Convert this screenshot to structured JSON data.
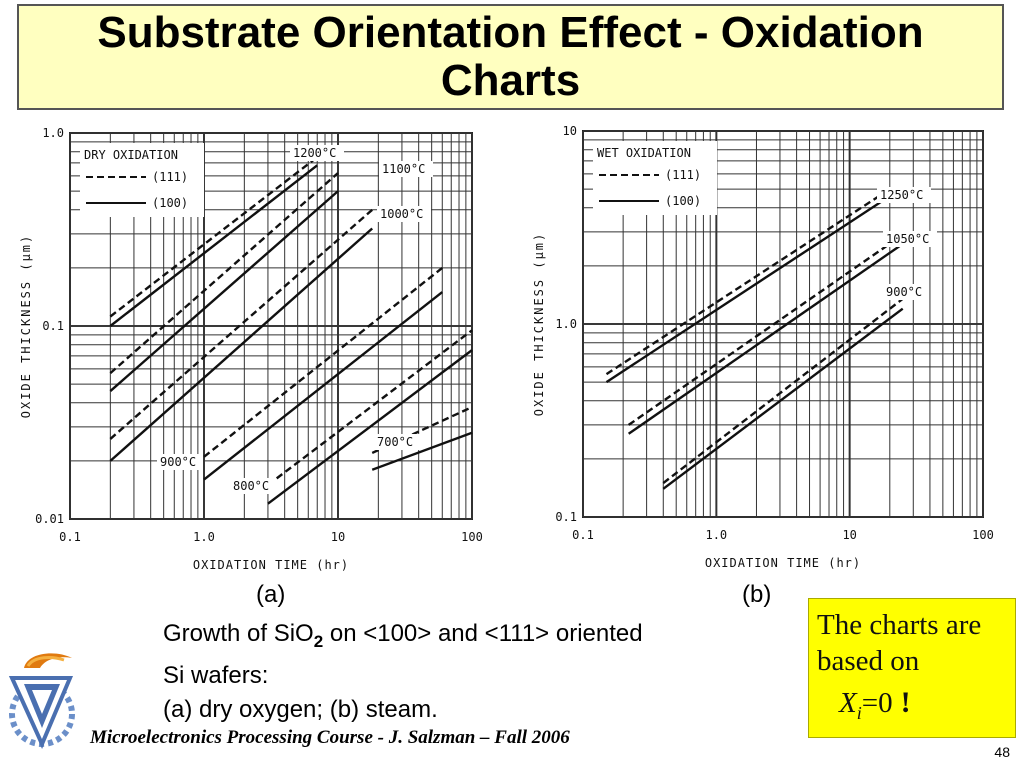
{
  "title": "Substrate Orientation Effect - Oxidation Charts",
  "caption_a": "(a)",
  "caption_b": "(b)",
  "description": {
    "line1_prefix": "Growth of SiO",
    "line1_sub": "2",
    "line1_suffix": " on <100> and <111> oriented",
    "line2": "Si wafers:",
    "line3": "(a) dry oxygen; (b) steam."
  },
  "note": {
    "line1": "The charts are",
    "line2": "based on",
    "var": "X",
    "var_sub": "i",
    "eq": "=0",
    "bang": "!"
  },
  "footer": "Microelectronics Processing Course - J. Salzman – Fall 2006",
  "page_number": "48",
  "colors": {
    "title_bg": "#ffffc0",
    "note_bg": "#ffff00",
    "ink": "#111111"
  },
  "chart_data": [
    {
      "type": "line",
      "title": "DRY OXIDATION",
      "xlabel": "OXIDATION TIME (hr)",
      "ylabel": "OXIDE THICKNESS (µm)",
      "x_scale": "log",
      "y_scale": "log",
      "xlim": [
        0.1,
        100
      ],
      "ylim": [
        0.01,
        1.0
      ],
      "x_ticks": [
        "0.1",
        "1.0",
        "10",
        "100"
      ],
      "y_ticks": [
        "0.01",
        "0.1",
        "1.0"
      ],
      "legend": {
        "position": "top-left",
        "entries": [
          {
            "label": "(111)",
            "style": "dashed"
          },
          {
            "label": "(100)",
            "style": "solid"
          }
        ]
      },
      "series": [
        {
          "name": "1200°C",
          "orientation": "(111)",
          "x": [
            0.2,
            7
          ],
          "y": [
            0.112,
            0.75
          ]
        },
        {
          "name": "1200°C",
          "orientation": "(100)",
          "x": [
            0.2,
            7
          ],
          "y": [
            0.1,
            0.68
          ]
        },
        {
          "name": "1100°C",
          "orientation": "(111)",
          "x": [
            0.2,
            10
          ],
          "y": [
            0.057,
            0.62
          ]
        },
        {
          "name": "1100°C",
          "orientation": "(100)",
          "x": [
            0.2,
            10
          ],
          "y": [
            0.046,
            0.5
          ]
        },
        {
          "name": "1000°C",
          "orientation": "(111)",
          "x": [
            0.2,
            18
          ],
          "y": [
            0.026,
            0.4
          ]
        },
        {
          "name": "1000°C",
          "orientation": "(100)",
          "x": [
            0.2,
            18
          ],
          "y": [
            0.02,
            0.32
          ]
        },
        {
          "name": "900°C",
          "orientation": "(111)",
          "x": [
            1.0,
            60
          ],
          "y": [
            0.021,
            0.2
          ]
        },
        {
          "name": "900°C",
          "orientation": "(100)",
          "x": [
            1.0,
            60
          ],
          "y": [
            0.016,
            0.15
          ]
        },
        {
          "name": "800°C",
          "orientation": "(111)",
          "x": [
            3,
            100
          ],
          "y": [
            0.015,
            0.095
          ]
        },
        {
          "name": "800°C",
          "orientation": "(100)",
          "x": [
            3,
            100
          ],
          "y": [
            0.012,
            0.075
          ]
        },
        {
          "name": "700°C",
          "orientation": "(111)",
          "x": [
            18,
            100
          ],
          "y": [
            0.022,
            0.038
          ]
        },
        {
          "name": "700°C",
          "orientation": "(100)",
          "x": [
            18,
            100
          ],
          "y": [
            0.018,
            0.028
          ]
        }
      ],
      "annotations": [
        "1200°C",
        "1100°C",
        "1000°C",
        "900°C",
        "800°C",
        "700°C"
      ]
    },
    {
      "type": "line",
      "title": "WET OXIDATION",
      "xlabel": "OXIDATION TIME (hr)",
      "ylabel": "OXIDE THICKNESS (µm)",
      "x_scale": "log",
      "y_scale": "log",
      "xlim": [
        0.1,
        100
      ],
      "ylim": [
        0.1,
        10
      ],
      "x_ticks": [
        "0.1",
        "1.0",
        "10",
        "100"
      ],
      "y_ticks": [
        "0.1",
        "1.0",
        "10"
      ],
      "legend": {
        "position": "top-left",
        "entries": [
          {
            "label": "(111)",
            "style": "dashed"
          },
          {
            "label": "(100)",
            "style": "solid"
          }
        ]
      },
      "series": [
        {
          "name": "1250°C",
          "orientation": "(111)",
          "x": [
            0.15,
            20
          ],
          "y": [
            0.55,
            5.0
          ]
        },
        {
          "name": "1250°C",
          "orientation": "(100)",
          "x": [
            0.15,
            20
          ],
          "y": [
            0.5,
            4.6
          ]
        },
        {
          "name": "1050°C",
          "orientation": "(111)",
          "x": [
            0.22,
            25
          ],
          "y": [
            0.3,
            2.9
          ]
        },
        {
          "name": "1050°C",
          "orientation": "(100)",
          "x": [
            0.22,
            25
          ],
          "y": [
            0.27,
            2.6
          ]
        },
        {
          "name": "900°C",
          "orientation": "(111)",
          "x": [
            0.4,
            25
          ],
          "y": [
            0.15,
            1.35
          ]
        },
        {
          "name": "900°C",
          "orientation": "(100)",
          "x": [
            0.4,
            25
          ],
          "y": [
            0.14,
            1.2
          ]
        }
      ],
      "annotations": [
        "1250°C",
        "1050°C",
        "900°C"
      ]
    }
  ]
}
